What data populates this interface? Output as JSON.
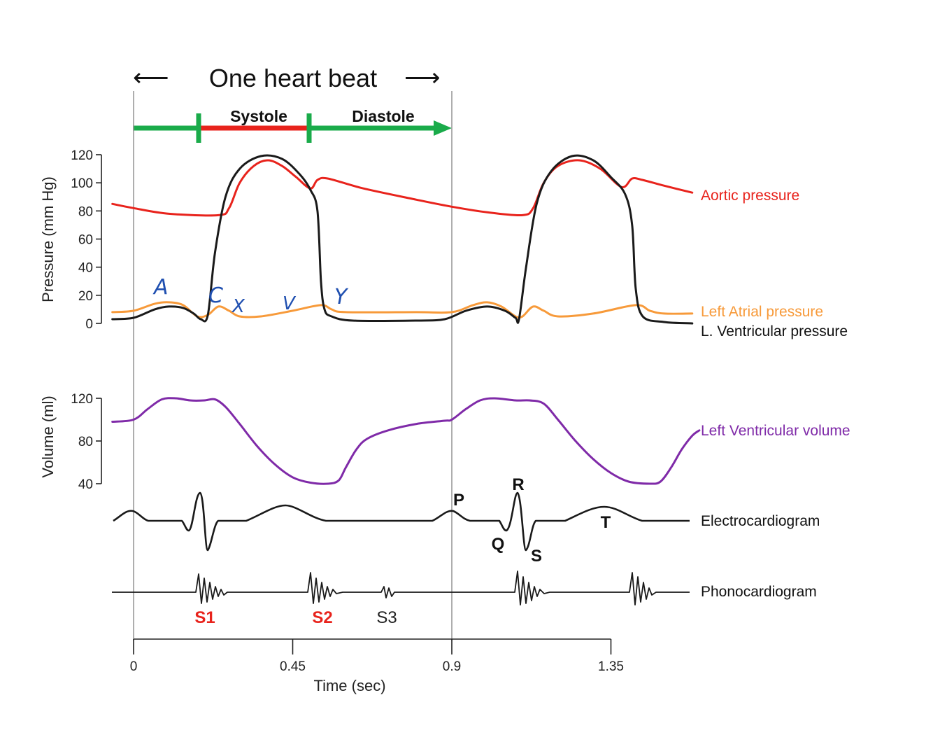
{
  "header": {
    "one_beat": "One heart beat",
    "arrow_left": "⟵",
    "arrow_right": "⟶",
    "systole": "Systole",
    "diastole": "Diastole"
  },
  "colors": {
    "aortic": "#e8231c",
    "atrial": "#f79a3a",
    "ventricular": "#1a1a1a",
    "volume": "#7f2aa8",
    "systole_bar": "#e8231c",
    "diastole_bar": "#1aab4a",
    "sound_label": "#e8231c"
  },
  "chart_data": [
    {
      "type": "line",
      "title": "Pressure",
      "ylabel": "Pressure (mm Hg)",
      "yticks": [
        0,
        20,
        40,
        60,
        80,
        100,
        120
      ],
      "ylim": [
        0,
        120
      ],
      "xlim": [
        -0.06,
        1.6
      ],
      "series": [
        {
          "name": "Aortic pressure",
          "key": "aortic",
          "points": [
            [
              -0.06,
              85
            ],
            [
              0.0,
              82
            ],
            [
              0.1,
              78
            ],
            [
              0.24,
              77
            ],
            [
              0.27,
              82
            ],
            [
              0.3,
              100
            ],
            [
              0.34,
              112
            ],
            [
              0.38,
              116
            ],
            [
              0.42,
              112
            ],
            [
              0.46,
              104
            ],
            [
              0.5,
              96
            ],
            [
              0.52,
              102
            ],
            [
              0.55,
              103
            ],
            [
              0.65,
              96
            ],
            [
              0.8,
              88
            ],
            [
              0.9,
              83
            ],
            [
              1.0,
              79
            ],
            [
              1.1,
              77
            ],
            [
              1.13,
              82
            ],
            [
              1.16,
              100
            ],
            [
              1.2,
              112
            ],
            [
              1.26,
              116
            ],
            [
              1.32,
              110
            ],
            [
              1.38,
              97
            ],
            [
              1.41,
              103
            ],
            [
              1.44,
              102
            ],
            [
              1.5,
              98
            ],
            [
              1.58,
              93
            ]
          ]
        },
        {
          "name": "Left Atrial pressure",
          "key": "atrial",
          "points": [
            [
              -0.06,
              8
            ],
            [
              0.0,
              9
            ],
            [
              0.06,
              14
            ],
            [
              0.1,
              15
            ],
            [
              0.14,
              13
            ],
            [
              0.18,
              5
            ],
            [
              0.21,
              6
            ],
            [
              0.24,
              12
            ],
            [
              0.27,
              9
            ],
            [
              0.3,
              5
            ],
            [
              0.36,
              5
            ],
            [
              0.45,
              9
            ],
            [
              0.53,
              13
            ],
            [
              0.56,
              10
            ],
            [
              0.6,
              8
            ],
            [
              0.8,
              8
            ],
            [
              0.9,
              8
            ],
            [
              0.96,
              13
            ],
            [
              1.0,
              15
            ],
            [
              1.04,
              12
            ],
            [
              1.08,
              5
            ],
            [
              1.1,
              5
            ],
            [
              1.13,
              12
            ],
            [
              1.16,
              9
            ],
            [
              1.2,
              5
            ],
            [
              1.3,
              7
            ],
            [
              1.42,
              13
            ],
            [
              1.46,
              9
            ],
            [
              1.5,
              7
            ],
            [
              1.58,
              7
            ]
          ]
        },
        {
          "name": "L. Ventricular pressure",
          "key": "ventricular",
          "points": [
            [
              -0.06,
              3
            ],
            [
              0.0,
              4
            ],
            [
              0.06,
              10
            ],
            [
              0.1,
              12
            ],
            [
              0.14,
              11
            ],
            [
              0.17,
              7
            ],
            [
              0.19,
              3
            ],
            [
              0.21,
              6
            ],
            [
              0.23,
              50
            ],
            [
              0.26,
              90
            ],
            [
              0.3,
              110
            ],
            [
              0.36,
              119
            ],
            [
              0.42,
              117
            ],
            [
              0.47,
              106
            ],
            [
              0.5,
              95
            ],
            [
              0.52,
              80
            ],
            [
              0.53,
              30
            ],
            [
              0.54,
              10
            ],
            [
              0.56,
              5
            ],
            [
              0.62,
              2
            ],
            [
              0.8,
              2
            ],
            [
              0.88,
              3
            ],
            [
              0.94,
              9
            ],
            [
              1.0,
              12
            ],
            [
              1.05,
              9
            ],
            [
              1.08,
              4
            ],
            [
              1.09,
              3
            ],
            [
              1.11,
              40
            ],
            [
              1.14,
              85
            ],
            [
              1.18,
              108
            ],
            [
              1.24,
              119
            ],
            [
              1.3,
              116
            ],
            [
              1.35,
              104
            ],
            [
              1.39,
              92
            ],
            [
              1.41,
              70
            ],
            [
              1.42,
              25
            ],
            [
              1.44,
              5
            ],
            [
              1.5,
              1
            ],
            [
              1.58,
              0
            ]
          ]
        }
      ]
    },
    {
      "type": "line",
      "title": "Volume",
      "ylabel": "Volume (ml)",
      "yticks": [
        40,
        80,
        120
      ],
      "ylim": [
        40,
        120
      ],
      "xlim": [
        -0.06,
        1.6
      ],
      "series": [
        {
          "name": "Left Ventricular volume",
          "key": "volume",
          "points": [
            [
              -0.06,
              98
            ],
            [
              0.0,
              100
            ],
            [
              0.04,
              110
            ],
            [
              0.08,
              119
            ],
            [
              0.12,
              120
            ],
            [
              0.16,
              118
            ],
            [
              0.2,
              118
            ],
            [
              0.23,
              119
            ],
            [
              0.26,
              112
            ],
            [
              0.3,
              96
            ],
            [
              0.35,
              75
            ],
            [
              0.4,
              58
            ],
            [
              0.45,
              46
            ],
            [
              0.5,
              41
            ],
            [
              0.55,
              40
            ],
            [
              0.58,
              43
            ],
            [
              0.6,
              55
            ],
            [
              0.63,
              72
            ],
            [
              0.66,
              82
            ],
            [
              0.72,
              90
            ],
            [
              0.8,
              96
            ],
            [
              0.88,
              99
            ],
            [
              0.9,
              100
            ],
            [
              0.94,
              110
            ],
            [
              0.98,
              118
            ],
            [
              1.02,
              120
            ],
            [
              1.08,
              118
            ],
            [
              1.12,
              118
            ],
            [
              1.16,
              115
            ],
            [
              1.2,
              100
            ],
            [
              1.25,
              80
            ],
            [
              1.3,
              63
            ],
            [
              1.35,
              50
            ],
            [
              1.4,
              42
            ],
            [
              1.46,
              40
            ],
            [
              1.49,
              42
            ],
            [
              1.52,
              55
            ],
            [
              1.55,
              72
            ],
            [
              1.58,
              85
            ],
            [
              1.6,
              90
            ]
          ]
        }
      ]
    }
  ],
  "labels": {
    "aortic": "Aortic pressure",
    "atrial": "Left Atrial pressure",
    "ventricular": "L. Ventricular pressure",
    "volume": "Left Ventricular volume",
    "ecg": "Electrocardiogram",
    "phono": "Phonocardiogram"
  },
  "ecg_waves": {
    "p": "P",
    "q": "Q",
    "r": "R",
    "s": "S",
    "t": "T"
  },
  "sounds": {
    "s1": "S1",
    "s2": "S2",
    "s3": "S3"
  },
  "annotations": {
    "a": "A",
    "c": "C",
    "x": "X",
    "v": "V",
    "y": "Y"
  },
  "time_axis": {
    "title": "Time (sec)",
    "ticks": [
      0,
      0.45,
      0.9,
      1.35
    ],
    "tick_labels": [
      "0",
      "0.45",
      "0.9",
      "1.35"
    ]
  }
}
